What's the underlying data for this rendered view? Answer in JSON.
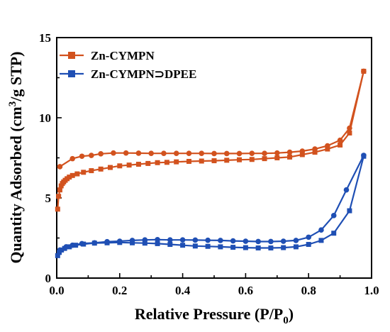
{
  "chart_data": {
    "type": "line",
    "xlabel": "Relative Pressure (P/P0)",
    "xlabel_parts": {
      "main": "Relative Pressure (P/P",
      "sub": "0",
      "tail": ")"
    },
    "ylabel": "Quantity Adsorbed (cm3/g STP)",
    "ylabel_parts": {
      "pre": "Quantity Adsorbed (cm",
      "sup": "3",
      "post": "/g STP)"
    },
    "xlim": [
      0.0,
      1.0
    ],
    "ylim": [
      0,
      15
    ],
    "xticks": [
      "0.0",
      "0.2",
      "0.4",
      "0.6",
      "0.8",
      "1.0"
    ],
    "xtick_values": [
      0.0,
      0.2,
      0.4,
      0.6,
      0.8,
      1.0
    ],
    "yticks": [
      "0",
      "5",
      "10",
      "15"
    ],
    "ytick_values": [
      0,
      5,
      10,
      15
    ],
    "grid": false,
    "legend_position": "top-left",
    "series": [
      {
        "name": "Zn-CYMPN",
        "color": "#d2521e",
        "marker": "square",
        "adsorption": {
          "x": [
            0.003,
            0.006,
            0.01,
            0.014,
            0.018,
            0.022,
            0.027,
            0.033,
            0.04,
            0.05,
            0.065,
            0.085,
            0.11,
            0.14,
            0.17,
            0.2,
            0.23,
            0.26,
            0.29,
            0.32,
            0.35,
            0.38,
            0.42,
            0.46,
            0.5,
            0.54,
            0.58,
            0.62,
            0.66,
            0.7,
            0.74,
            0.78,
            0.82,
            0.86,
            0.9,
            0.93,
            0.975
          ],
          "y": [
            4.3,
            5.1,
            5.5,
            5.75,
            5.9,
            6.0,
            6.1,
            6.2,
            6.3,
            6.4,
            6.5,
            6.6,
            6.7,
            6.8,
            6.9,
            7.0,
            7.05,
            7.1,
            7.15,
            7.2,
            7.22,
            7.25,
            7.28,
            7.3,
            7.32,
            7.35,
            7.38,
            7.4,
            7.45,
            7.5,
            7.55,
            7.7,
            7.85,
            8.05,
            8.3,
            9.05,
            12.9
          ]
        },
        "desorption": {
          "x": [
            0.975,
            0.93,
            0.9,
            0.86,
            0.82,
            0.78,
            0.74,
            0.7,
            0.66,
            0.62,
            0.58,
            0.54,
            0.5,
            0.46,
            0.42,
            0.38,
            0.34,
            0.3,
            0.26,
            0.22,
            0.18,
            0.14,
            0.11,
            0.08,
            0.05,
            0.01
          ],
          "y": [
            12.9,
            9.35,
            8.6,
            8.25,
            8.05,
            7.92,
            7.85,
            7.8,
            7.78,
            7.78,
            7.77,
            7.77,
            7.77,
            7.78,
            7.78,
            7.78,
            7.78,
            7.78,
            7.79,
            7.8,
            7.8,
            7.75,
            7.65,
            7.6,
            7.45,
            6.95
          ]
        }
      },
      {
        "name": "Zn-CYMPN⊃DPEE",
        "color": "#1f4fb4",
        "marker": "square",
        "adsorption": {
          "x": [
            0.003,
            0.008,
            0.015,
            0.025,
            0.04,
            0.06,
            0.085,
            0.12,
            0.16,
            0.2,
            0.24,
            0.28,
            0.32,
            0.36,
            0.4,
            0.44,
            0.48,
            0.52,
            0.56,
            0.6,
            0.64,
            0.68,
            0.72,
            0.76,
            0.8,
            0.84,
            0.88,
            0.93,
            0.975
          ],
          "y": [
            1.4,
            1.6,
            1.75,
            1.85,
            1.95,
            2.05,
            2.12,
            2.18,
            2.2,
            2.22,
            2.2,
            2.18,
            2.15,
            2.1,
            2.05,
            2.0,
            1.98,
            1.95,
            1.92,
            1.9,
            1.88,
            1.88,
            1.9,
            1.95,
            2.1,
            2.35,
            2.8,
            4.2,
            7.6
          ]
        },
        "desorption": {
          "x": [
            0.975,
            0.92,
            0.88,
            0.84,
            0.8,
            0.76,
            0.72,
            0.68,
            0.64,
            0.6,
            0.56,
            0.52,
            0.48,
            0.44,
            0.4,
            0.36,
            0.32,
            0.28,
            0.24,
            0.2,
            0.16,
            0.12,
            0.08,
            0.05,
            0.03,
            0.01
          ],
          "y": [
            7.65,
            5.5,
            3.9,
            3.0,
            2.55,
            2.35,
            2.3,
            2.28,
            2.28,
            2.3,
            2.32,
            2.35,
            2.36,
            2.37,
            2.38,
            2.38,
            2.4,
            2.38,
            2.35,
            2.3,
            2.27,
            2.2,
            2.15,
            2.05,
            1.95,
            1.75
          ]
        }
      }
    ]
  }
}
